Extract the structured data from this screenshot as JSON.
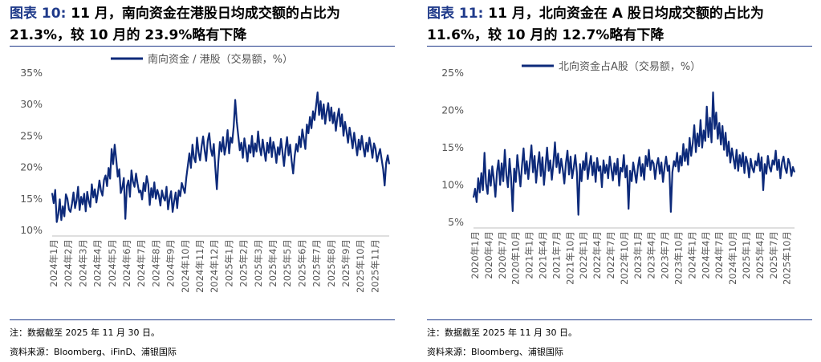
{
  "charts": [
    {
      "title_label": "图表 10:",
      "title_text": "11 月，南向资金在港股日均成交额的占比为 21.3%，较 10 月的 23.9%略有下降",
      "note": "注：数据截至 2025 年 11 月 30 日。",
      "source": "资料来源：Bloomberg、iFinD、浦银国际"
    },
    {
      "title_label": "图表 11:",
      "title_text": "11 月，北向资金在 A 股日均成交额的占比为 11.6%，较 10 月的 12.7%略有下降",
      "note": "注：数据截至 2025 年 11 月 30 日。",
      "source": "资料来源：Bloomberg、浦银国际"
    }
  ],
  "colors": {
    "line": "#0d2a7a",
    "accent": "#1f3a8a",
    "axis": "#bfbfbf"
  },
  "chart_data": [
    {
      "type": "line",
      "legend": "南向资金 / 港股（交易额，%）",
      "legend_position": "top",
      "ylim": [
        10,
        35
      ],
      "yticks": [
        "10%",
        "15%",
        "20%",
        "25%",
        "30%",
        "35%"
      ],
      "grid": false,
      "x_tick_labels": [
        "2024年1月",
        "2024年2月",
        "2024年3月",
        "2024年4月",
        "2024年5月",
        "2024年6月",
        "2024年7月",
        "2024年8月",
        "2024年9月",
        "2024年10月",
        "2024年11月",
        "2024年12月",
        "2025年1月",
        "2025年2月",
        "2025年3月",
        "2025年4月",
        "2025年5月",
        "2025年6月",
        "2025年7月",
        "2025年8月",
        "2025年9月",
        "2025年10月",
        "2025年11月"
      ],
      "monthly_avg_approx": [
        14.0,
        13.5,
        14.8,
        15.5,
        18.5,
        17.0,
        16.5,
        15.5,
        15.0,
        21.0,
        22.0,
        24.0,
        23.0,
        21.5,
        22.0,
        21.5,
        22.0,
        24.5,
        27.0,
        28.5,
        25.0,
        23.9,
        21.3
      ],
      "series_y": [
        15.8,
        14.2,
        16.3,
        11.2,
        12.4,
        14.8,
        11.5,
        13.7,
        12.1,
        15.6,
        14.9,
        13.2,
        12.8,
        14.1,
        15.9,
        13.4,
        14.6,
        16.8,
        13.1,
        15.2,
        14.0,
        15.7,
        12.9,
        16.0,
        14.5,
        13.6,
        17.2,
        15.1,
        16.4,
        14.3,
        15.9,
        17.8,
        16.2,
        15.4,
        17.9,
        18.6,
        16.9,
        19.8,
        18.1,
        22.8,
        20.4,
        23.5,
        21.2,
        18.4,
        19.6,
        15.8,
        16.7,
        18.2,
        11.7,
        16.9,
        17.8,
        15.2,
        19.4,
        17.6,
        16.8,
        18.9,
        17.3,
        15.9,
        16.2,
        14.8,
        17.4,
        16.1,
        18.5,
        17.2,
        13.9,
        16.6,
        15.1,
        17.5,
        14.9,
        16.3,
        15.4,
        13.8,
        16.2,
        15.1,
        14.6,
        16.8,
        13.2,
        14.9,
        16.1,
        12.8,
        14.5,
        15.9,
        13.4,
        16.2,
        15.3,
        17.4,
        16.6,
        15.8,
        18.3,
        20.2,
        22.1,
        19.8,
        23.5,
        21.4,
        20.7,
        24.6,
        22.3,
        21.0,
        23.2,
        24.8,
        22.6,
        20.9,
        24.1,
        25.3,
        22.8,
        21.7,
        23.6,
        19.8,
        16.4,
        20.8,
        23.9,
        22.4,
        24.7,
        21.9,
        23.3,
        25.8,
        22.1,
        24.6,
        23.8,
        26.4,
        30.6,
        27.2,
        24.9,
        22.6,
        23.8,
        21.4,
        24.5,
        22.9,
        20.8,
        23.4,
        22.2,
        24.9,
        21.6,
        23.7,
        22.4,
        25.6,
        23.1,
        21.8,
        24.3,
        22.5,
        20.9,
        23.8,
        22.2,
        24.6,
        21.5,
        23.9,
        22.7,
        20.6,
        23.1,
        21.9,
        24.4,
        22.3,
        20.1,
        22.8,
        24.7,
        21.8,
        23.5,
        20.9,
        18.9,
        21.7,
        23.6,
        22.4,
        24.8,
        23.1,
        25.9,
        24.4,
        22.8,
        26.7,
        25.3,
        27.9,
        26.1,
        28.8,
        27.4,
        29.6,
        31.8,
        28.2,
        30.4,
        27.6,
        29.9,
        26.8,
        28.7,
        30.1,
        27.3,
        29.4,
        26.9,
        28.6,
        25.7,
        27.8,
        29.2,
        26.4,
        28.3,
        24.9,
        27.1,
        25.6,
        23.8,
        26.2,
        24.7,
        22.9,
        25.4,
        23.6,
        21.8,
        24.3,
        22.7,
        24.9,
        23.1,
        21.6,
        23.8,
        22.4,
        24.6,
        23.2,
        21.4,
        23.7,
        22.9,
        20.8,
        21.9,
        22.8,
        21.2,
        19.6,
        17.0,
        20.6,
        21.8,
        20.4
      ]
    },
    {
      "type": "line",
      "legend": "北向资金占A股（交易额，%）",
      "legend_position": "top",
      "ylim": [
        5,
        25
      ],
      "yticks": [
        "5%",
        "10%",
        "15%",
        "20%",
        "25%"
      ],
      "grid": false,
      "x_tick_labels": [
        "2020年1月",
        "2020年4月",
        "2020年7月",
        "2020年10月",
        "2021年1月",
        "2021年4月",
        "2021年7月",
        "2021年10月",
        "2022年1月",
        "2022年4月",
        "2022年7月",
        "2022年10月",
        "2023年1月",
        "2023年4月",
        "2023年7月",
        "2023年10月",
        "2024年1月",
        "2024年4月",
        "2024年7月",
        "2024年10月",
        "2025年1月",
        "2025年4月",
        "2025年7月",
        "2025年10月"
      ],
      "monthly_avg_approx": [
        9.0,
        10.0,
        11.5,
        12.0,
        13.0,
        12.5,
        12.0,
        11.5,
        12.0,
        11.5,
        11.0,
        10.5,
        12.5,
        12.0,
        11.5,
        11.0,
        12.5,
        15.0,
        16.5,
        13.5,
        12.5,
        12.0,
        12.5,
        12.7,
        11.6
      ],
      "series_y": [
        8.2,
        9.4,
        7.6,
        10.8,
        8.9,
        11.5,
        9.2,
        14.2,
        10.1,
        8.7,
        11.9,
        9.8,
        12.4,
        10.6,
        8.3,
        11.7,
        13.2,
        9.9,
        12.8,
        10.4,
        14.6,
        11.2,
        9.6,
        13.4,
        10.9,
        6.4,
        12.1,
        10.3,
        13.9,
        11.8,
        9.7,
        12.6,
        14.8,
        11.4,
        13.1,
        10.7,
        12.9,
        15.2,
        11.6,
        13.8,
        10.2,
        12.5,
        14.3,
        11.1,
        13.6,
        9.9,
        12.4,
        14.9,
        11.8,
        13.2,
        10.6,
        12.7,
        15.6,
        12.3,
        14.1,
        11.5,
        13.4,
        12.0,
        10.1,
        12.8,
        14.5,
        11.3,
        13.7,
        10.8,
        12.2,
        13.9,
        11.6,
        5.9,
        12.7,
        10.4,
        13.1,
        11.9,
        14.2,
        10.7,
        12.5,
        13.8,
        11.2,
        12.9,
        10.3,
        13.5,
        11.8,
        12.4,
        9.6,
        13.2,
        11.5,
        12.6,
        10.8,
        13.7,
        12.1,
        10.5,
        12.8,
        11.3,
        13.4,
        9.8,
        12.2,
        11.7,
        13.9,
        10.9,
        12.5,
        6.7,
        11.8,
        10.4,
        12.9,
        11.6,
        10.2,
        12.3,
        13.6,
        11.1,
        12.7,
        10.6,
        13.8,
        12.4,
        14.6,
        11.9,
        13.2,
        12.8,
        10.7,
        12.6,
        13.5,
        11.4,
        12.9,
        10.3,
        12.2,
        13.7,
        11.8,
        12.5,
        6.3,
        11.6,
        13.1,
        12.4,
        14.2,
        11.7,
        13.8,
        12.5,
        15.4,
        13.1,
        14.7,
        12.6,
        16.2,
        13.8,
        15.5,
        17.9,
        14.3,
        16.8,
        15.1,
        18.6,
        14.9,
        17.2,
        15.8,
        20.4,
        16.3,
        18.9,
        15.6,
        22.3,
        17.4,
        19.6,
        16.1,
        18.2,
        15.3,
        17.8,
        14.6,
        16.9,
        13.8,
        15.7,
        12.9,
        14.8,
        13.5,
        12.1,
        14.6,
        11.8,
        13.9,
        12.4,
        14.2,
        11.5,
        13.7,
        12.8,
        10.9,
        13.4,
        12.2,
        11.6,
        13.1,
        12.5,
        14.1,
        11.8,
        13.6,
        9.2,
        12.7,
        11.4,
        13.8,
        12.3,
        11.7,
        13.2,
        12.6,
        14.5,
        11.9,
        13.3,
        10.8,
        12.9,
        13.7,
        12.2,
        11.5,
        13.4,
        12.8,
        11.1,
        12.3,
        11.6
      ]
    }
  ]
}
